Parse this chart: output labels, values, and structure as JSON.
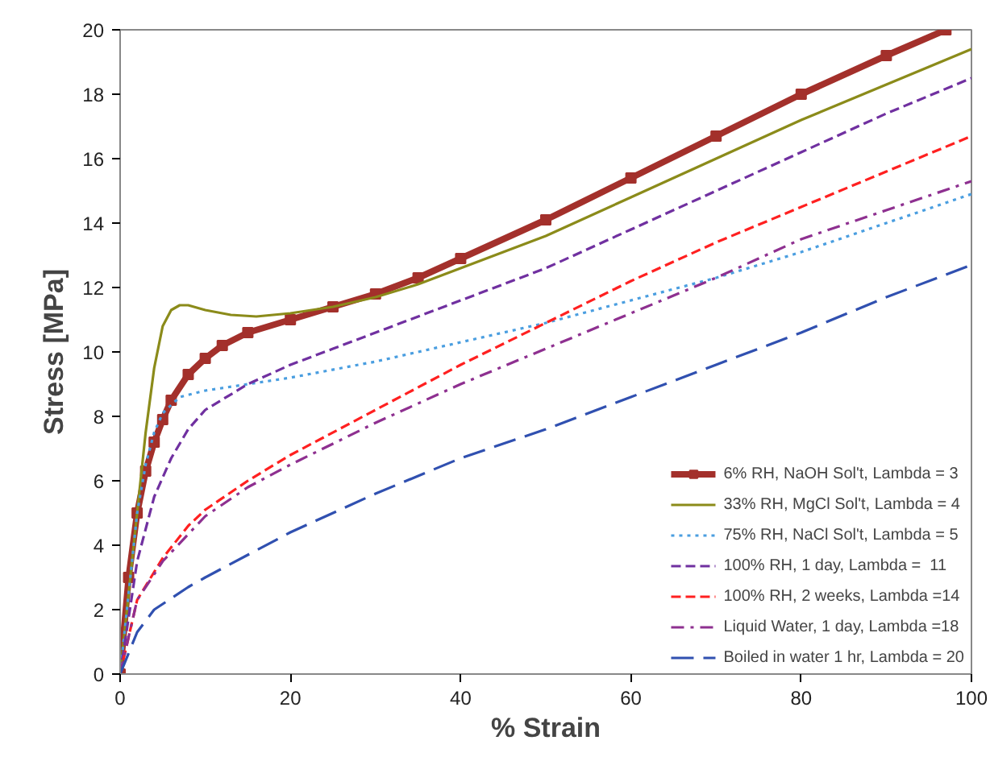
{
  "chart_data": {
    "type": "line",
    "xlabel": "% Strain",
    "ylabel": "Stress [MPa]",
    "xlim": [
      0,
      100
    ],
    "ylim": [
      0,
      20
    ],
    "xticks": [
      0,
      20,
      40,
      60,
      80,
      100
    ],
    "yticks": [
      0,
      2,
      4,
      6,
      8,
      10,
      12,
      14,
      16,
      18,
      20
    ],
    "grid": false,
    "legend": "bottom right",
    "series": [
      {
        "name": "6% RH, NaOH Sol't, Lambda = 3",
        "color": "#a3302b",
        "marker": "square",
        "line_style": "solid",
        "x": [
          0,
          1,
          2,
          3,
          4,
          5,
          6,
          8,
          10,
          12,
          15,
          20,
          25,
          30,
          35,
          40,
          50,
          60,
          70,
          80,
          90,
          97
        ],
        "values": [
          0,
          3,
          5,
          6.3,
          7.2,
          7.9,
          8.5,
          9.3,
          9.8,
          10.2,
          10.6,
          11.0,
          11.4,
          11.8,
          12.3,
          12.9,
          14.1,
          15.4,
          16.7,
          18.0,
          19.2,
          20.0
        ]
      },
      {
        "name": "33% RH, MgCl Sol't, Lambda = 4",
        "color": "#8b8b1a",
        "marker": "none",
        "line_style": "solid",
        "x": [
          0,
          2,
          3,
          4,
          5,
          6,
          7,
          8,
          10,
          13,
          16,
          20,
          25,
          30,
          35,
          40,
          50,
          60,
          70,
          80,
          90,
          100
        ],
        "values": [
          0,
          5,
          7.5,
          9.5,
          10.8,
          11.3,
          11.45,
          11.45,
          11.3,
          11.15,
          11.1,
          11.2,
          11.4,
          11.7,
          12.1,
          12.6,
          13.6,
          14.8,
          16.0,
          17.2,
          18.3,
          19.4
        ]
      },
      {
        "name": "75% RH, NaCl Sol't, Lambda = 5",
        "color": "#4a9ee0",
        "marker": "none",
        "line_style": "dotted",
        "x": [
          0,
          2,
          3,
          4,
          5,
          7,
          10,
          15,
          20,
          30,
          40,
          50,
          60,
          70,
          80,
          90,
          100
        ],
        "values": [
          0,
          5,
          6.5,
          7.5,
          8.1,
          8.6,
          8.8,
          9.0,
          9.2,
          9.7,
          10.3,
          10.9,
          11.6,
          12.3,
          13.1,
          14.0,
          14.9
        ]
      },
      {
        "name": "100% RH, 1 day, Lambda =  11",
        "color": "#7030a0",
        "marker": "none",
        "line_style": "dashed",
        "x": [
          0,
          2,
          4,
          6,
          8,
          10,
          15,
          20,
          25,
          30,
          40,
          50,
          60,
          70,
          80,
          90,
          100
        ],
        "values": [
          0,
          3.5,
          5.5,
          6.7,
          7.6,
          8.2,
          9.0,
          9.6,
          10.1,
          10.6,
          11.6,
          12.6,
          13.8,
          15.0,
          16.2,
          17.4,
          18.5
        ]
      },
      {
        "name": "100% RH, 2 weeks, Lambda =14",
        "color": "#ff2020",
        "marker": "none",
        "line_style": "dashed",
        "x": [
          0,
          2,
          5,
          8,
          10,
          15,
          20,
          30,
          40,
          50,
          60,
          70,
          80,
          90,
          100
        ],
        "values": [
          0,
          2.3,
          3.6,
          4.6,
          5.1,
          6.0,
          6.8,
          8.2,
          9.6,
          10.9,
          12.2,
          13.4,
          14.5,
          15.6,
          16.7
        ]
      },
      {
        "name": "Liquid Water, 1 day, Lambda =18",
        "color": "#8e3090",
        "marker": "none",
        "line_style": "dashdot",
        "x": [
          0,
          2,
          5,
          10,
          15,
          20,
          30,
          40,
          50,
          60,
          70,
          80,
          90,
          100
        ],
        "values": [
          0,
          2.3,
          3.5,
          4.9,
          5.8,
          6.5,
          7.8,
          9.0,
          10.1,
          11.2,
          12.3,
          13.5,
          14.4,
          15.3
        ]
      },
      {
        "name": "Boiled in water 1 hr, Lambda = 20",
        "color": "#3050b0",
        "marker": "none",
        "line_style": "longdash",
        "x": [
          0,
          2,
          4,
          8,
          10,
          15,
          20,
          30,
          40,
          50,
          60,
          70,
          80,
          90,
          100
        ],
        "values": [
          0,
          1.3,
          2.0,
          2.7,
          3.0,
          3.7,
          4.4,
          5.6,
          6.7,
          7.6,
          8.6,
          9.6,
          10.6,
          11.7,
          12.7
        ]
      }
    ]
  }
}
